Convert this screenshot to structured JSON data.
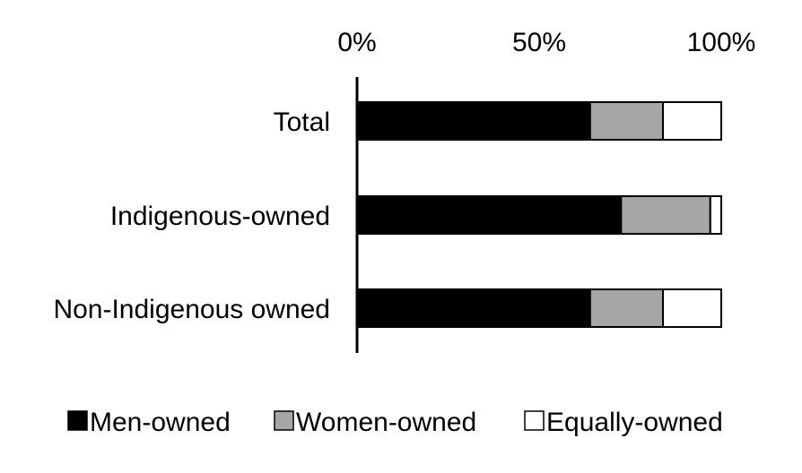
{
  "chart_data": {
    "type": "bar",
    "orientation": "horizontal",
    "stacked": true,
    "categories": [
      "Total",
      "Indigenous-owned",
      "Non-Indigenous owned"
    ],
    "series": [
      {
        "name": "Men-owned",
        "color": "#000000",
        "values": [
          64,
          72.5,
          64
        ]
      },
      {
        "name": "Women-owned",
        "color": "#a6a6a6",
        "values": [
          20,
          24.5,
          20
        ]
      },
      {
        "name": "Equally-owned",
        "color": "#ffffff",
        "values": [
          16,
          3,
          16
        ]
      }
    ],
    "xlim": [
      0,
      100
    ],
    "x_ticks": [
      "0%",
      "50%",
      "100%"
    ],
    "x_axis_position": "top",
    "grid": false,
    "legend_position": "bottom"
  }
}
